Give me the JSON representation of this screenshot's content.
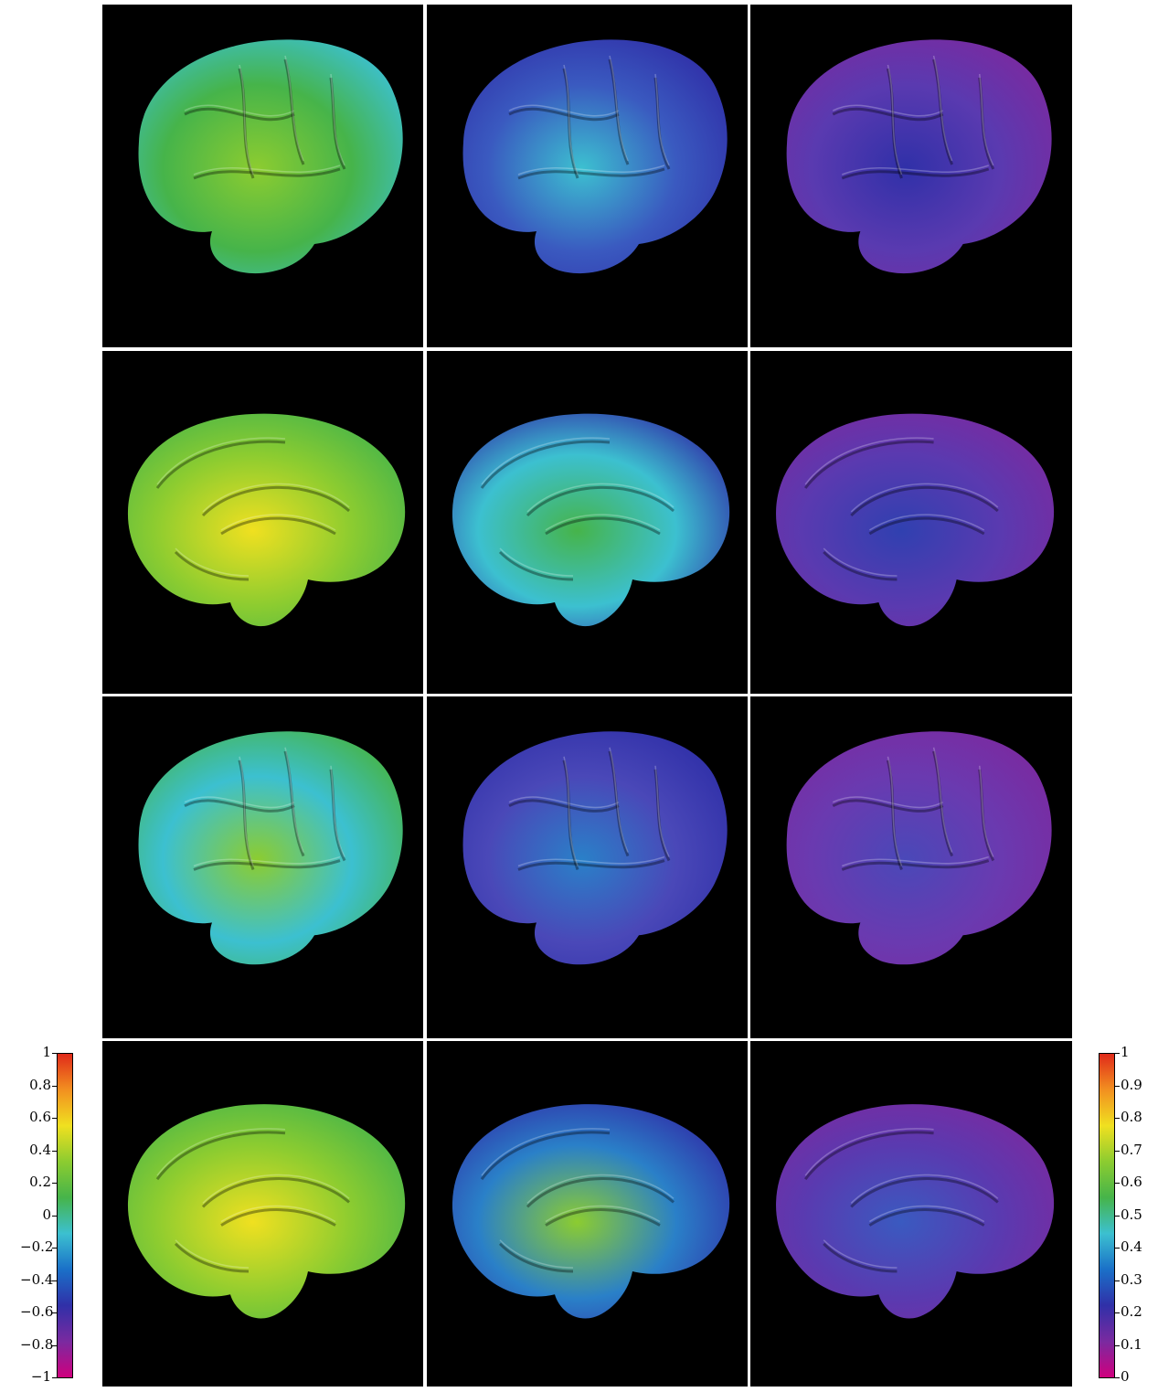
{
  "figure": {
    "rows": [
      {
        "view": "lateral",
        "panels": [
          "diverging-map",
          "magnitude-map-a",
          "magnitude-map-b"
        ]
      },
      {
        "view": "medial",
        "panels": [
          "diverging-map",
          "magnitude-map-a",
          "magnitude-map-b"
        ]
      },
      {
        "view": "lateral",
        "panels": [
          "diverging-map",
          "magnitude-map-a",
          "magnitude-map-b"
        ]
      },
      {
        "view": "medial",
        "panels": [
          "diverging-map",
          "magnitude-map-a",
          "magnitude-map-b"
        ]
      }
    ],
    "background_color": "#000000",
    "divider_color": "#ffffff"
  },
  "colorbar_left": {
    "min": -1,
    "max": 1,
    "ticks": [
      "1",
      "0.8",
      "0.6",
      "0.4",
      "0.2",
      "0",
      "−0.2",
      "−0.4",
      "−0.6",
      "−0.8",
      "−1"
    ],
    "colors": [
      "#d0007e",
      "#7a2aa0",
      "#3030a8",
      "#1a70c8",
      "#3cc0d0",
      "#46b44a",
      "#8ccc30",
      "#f0e020",
      "#f29020",
      "#e02a1a"
    ]
  },
  "colorbar_right": {
    "min": 0,
    "max": 1,
    "ticks": [
      "1",
      "0.9",
      "0.8",
      "0.7",
      "0.6",
      "0.5",
      "0.4",
      "0.3",
      "0.2",
      "0.1",
      "0"
    ],
    "colors": [
      "#d0007e",
      "#7a2aa0",
      "#3030a8",
      "#1a70c8",
      "#3cc0d0",
      "#46b44a",
      "#8ccc30",
      "#f0e020",
      "#f29020",
      "#e02a1a"
    ]
  }
}
